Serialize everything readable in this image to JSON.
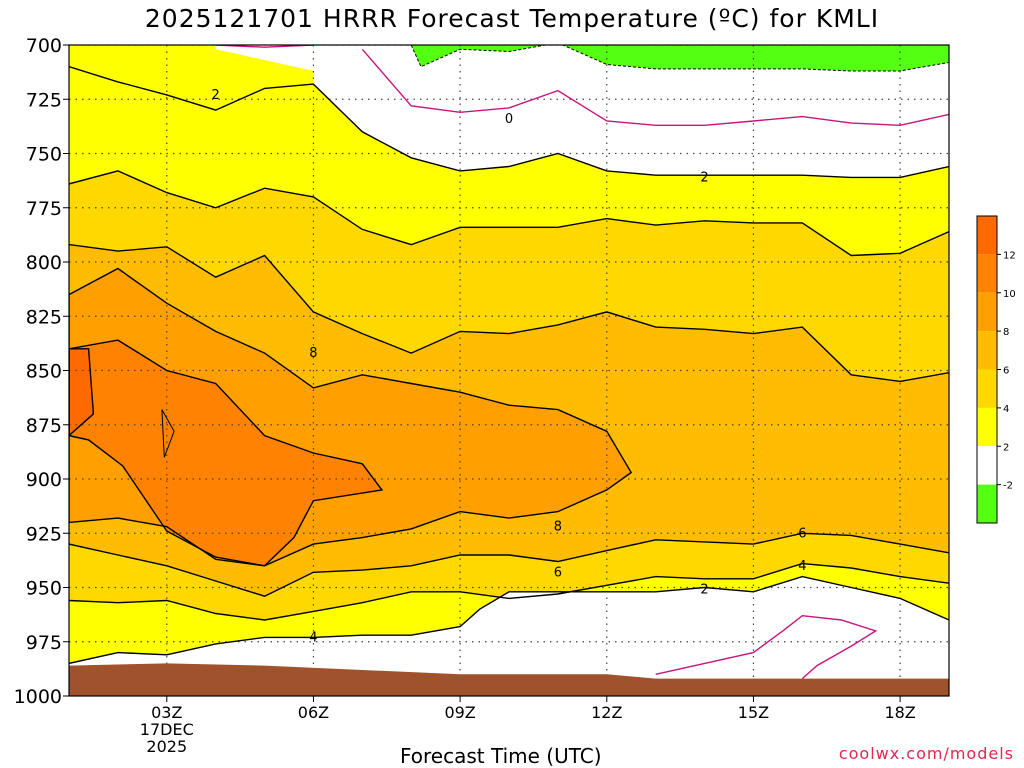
{
  "title": "2025121701 HRRR Forecast Temperature (ºC) for KMLI",
  "credit": "coolwx.com/models",
  "chart_data": {
    "type": "heatmap",
    "title": "2025121701 HRRR Forecast Temperature (ºC) for KMLI",
    "xlabel": "Forecast Time (UTC)",
    "ylabel": "",
    "x_unit": "forecast hour",
    "xlim": [
      1,
      19
    ],
    "ylim": [
      1000,
      700
    ],
    "y_ticks": [
      700,
      725,
      750,
      775,
      800,
      825,
      850,
      875,
      900,
      925,
      950,
      975,
      1000
    ],
    "x_ticks": [
      {
        "hour": 3,
        "label": "03Z",
        "sub": [
          "17DEC",
          "2025"
        ]
      },
      {
        "hour": 6,
        "label": "06Z"
      },
      {
        "hour": 9,
        "label": "09Z"
      },
      {
        "hour": 12,
        "label": "12Z"
      },
      {
        "hour": 15,
        "label": "15Z"
      },
      {
        "hour": 18,
        "label": "18Z"
      }
    ],
    "grid": true,
    "colorbar": {
      "levels": [
        {
          "min": -4,
          "max": -2,
          "color": "#55ff11"
        },
        {
          "min": -2,
          "max": 2,
          "color": "#ffffff"
        },
        {
          "min": 2,
          "max": 4,
          "color": "#ffff00"
        },
        {
          "min": 4,
          "max": 6,
          "color": "#ffd800"
        },
        {
          "min": 6,
          "max": 8,
          "color": "#ffbc00"
        },
        {
          "min": 8,
          "max": 10,
          "color": "#ff9f00"
        },
        {
          "min": 10,
          "max": 12,
          "color": "#ff8200"
        },
        {
          "min": 12,
          "max": 14,
          "color": "#ff6a00"
        }
      ],
      "tick_labels": [
        "-2",
        "2",
        "4",
        "6",
        "8",
        "10",
        "12"
      ]
    },
    "hours": [
      1,
      2,
      3,
      4,
      5,
      6,
      7,
      8,
      9,
      10,
      11,
      12,
      13,
      14,
      15,
      16,
      17,
      18,
      19
    ],
    "isotherms": [
      {
        "temp": 2,
        "points": [
          [
            1,
            710
          ],
          [
            2,
            717
          ],
          [
            3,
            723
          ],
          [
            4,
            730
          ],
          [
            5,
            720
          ],
          [
            6,
            718
          ],
          [
            7,
            740
          ],
          [
            8,
            752
          ],
          [
            9,
            758
          ],
          [
            10,
            756
          ],
          [
            11,
            750
          ],
          [
            12,
            758
          ],
          [
            13,
            760
          ],
          [
            14,
            760
          ],
          [
            15,
            760
          ],
          [
            16,
            760
          ],
          [
            17,
            761
          ],
          [
            18,
            761
          ],
          [
            19,
            756
          ]
        ]
      },
      {
        "temp": 4,
        "points": [
          [
            1,
            764
          ],
          [
            2,
            758
          ],
          [
            3,
            768
          ],
          [
            4,
            775
          ],
          [
            5,
            766
          ],
          [
            6,
            770
          ],
          [
            7,
            785
          ],
          [
            8,
            792
          ],
          [
            9,
            784
          ],
          [
            10,
            784
          ],
          [
            11,
            784
          ],
          [
            12,
            780
          ],
          [
            13,
            783
          ],
          [
            14,
            781
          ],
          [
            15,
            782
          ],
          [
            16,
            782
          ],
          [
            17,
            797
          ],
          [
            18,
            796
          ],
          [
            19,
            786
          ]
        ]
      },
      {
        "temp": 6,
        "points": [
          [
            1,
            792
          ],
          [
            2,
            795
          ],
          [
            3,
            793
          ],
          [
            4,
            807
          ],
          [
            5,
            797
          ],
          [
            6,
            823
          ],
          [
            7,
            833
          ],
          [
            8,
            842
          ],
          [
            9,
            832
          ],
          [
            10,
            833
          ],
          [
            11,
            829
          ],
          [
            12,
            823
          ],
          [
            13,
            830
          ],
          [
            14,
            831
          ],
          [
            15,
            833
          ],
          [
            16,
            830
          ],
          [
            17,
            852
          ],
          [
            18,
            855
          ],
          [
            19,
            851
          ]
        ]
      },
      {
        "temp": 8,
        "points": [
          [
            1,
            815
          ],
          [
            2,
            803
          ],
          [
            3,
            819
          ],
          [
            4,
            832
          ],
          [
            5,
            842
          ],
          [
            6,
            858
          ],
          [
            7,
            852
          ],
          [
            8,
            856
          ],
          [
            9,
            860
          ],
          [
            10,
            866
          ],
          [
            11,
            868
          ],
          [
            12,
            878
          ],
          [
            12.5,
            897
          ],
          [
            12,
            905
          ],
          [
            11,
            915
          ],
          [
            10,
            918
          ],
          [
            9,
            915
          ],
          [
            8,
            923
          ],
          [
            7,
            927
          ],
          [
            6,
            930
          ],
          [
            5,
            940
          ],
          [
            4,
            937
          ],
          [
            3,
            922
          ],
          [
            2,
            918
          ],
          [
            1,
            920
          ]
        ]
      },
      {
        "temp": 10,
        "points": [
          [
            1,
            840
          ],
          [
            2,
            836
          ],
          [
            3,
            850
          ],
          [
            4,
            856
          ],
          [
            5,
            880
          ],
          [
            6,
            888
          ],
          [
            7,
            893
          ],
          [
            7.4,
            905
          ],
          [
            6,
            910
          ],
          [
            5.6,
            927
          ],
          [
            5,
            940
          ],
          [
            4,
            936
          ],
          [
            3,
            924
          ],
          [
            2.1,
            894
          ],
          [
            1.4,
            882
          ],
          [
            1,
            880
          ]
        ]
      },
      {
        "temp": 12,
        "points": [
          [
            1,
            840
          ],
          [
            1.4,
            840
          ],
          [
            1.5,
            870
          ],
          [
            1,
            880
          ]
        ]
      },
      {
        "temp": 6,
        "points": [
          [
            1,
            930
          ],
          [
            2,
            935
          ],
          [
            3,
            940
          ],
          [
            4,
            947
          ],
          [
            5,
            954
          ],
          [
            6,
            943
          ],
          [
            7,
            942
          ],
          [
            8,
            940
          ],
          [
            9,
            935
          ],
          [
            10,
            935
          ],
          [
            11,
            938
          ],
          [
            12,
            933
          ],
          [
            13,
            928
          ],
          [
            14,
            929
          ],
          [
            15,
            930
          ],
          [
            16,
            925
          ],
          [
            17,
            926
          ],
          [
            18,
            930
          ],
          [
            19,
            934
          ]
        ]
      },
      {
        "temp": 4,
        "points": [
          [
            1,
            956
          ],
          [
            2,
            957
          ],
          [
            3,
            956
          ],
          [
            4,
            962
          ],
          [
            5,
            965
          ],
          [
            6,
            961
          ],
          [
            7,
            957
          ],
          [
            8,
            952
          ],
          [
            9,
            952
          ],
          [
            10,
            955
          ],
          [
            11,
            953
          ],
          [
            12,
            949
          ],
          [
            13,
            945
          ],
          [
            14,
            946
          ],
          [
            15,
            946
          ],
          [
            16,
            939
          ],
          [
            17,
            941
          ],
          [
            18,
            945
          ],
          [
            19,
            948
          ]
        ]
      },
      {
        "temp": 2,
        "points": [
          [
            1,
            985
          ],
          [
            2,
            980
          ],
          [
            3,
            981
          ],
          [
            4,
            976
          ],
          [
            5,
            973
          ],
          [
            6,
            973
          ],
          [
            7,
            972
          ],
          [
            8,
            972
          ],
          [
            9,
            968
          ],
          [
            9.4,
            960
          ],
          [
            10,
            952
          ],
          [
            11,
            952
          ],
          [
            12,
            952
          ],
          [
            13,
            952
          ],
          [
            14,
            950
          ],
          [
            15,
            952
          ],
          [
            16,
            945
          ],
          [
            17,
            950
          ],
          [
            18,
            955
          ],
          [
            19,
            965
          ]
        ]
      },
      {
        "temp": 0,
        "points": [
          [
            7,
            702
          ],
          [
            8,
            728
          ],
          [
            9,
            731
          ],
          [
            10,
            729
          ],
          [
            11,
            721
          ],
          [
            12,
            735
          ],
          [
            13,
            737
          ],
          [
            14,
            737
          ],
          [
            15,
            735
          ],
          [
            16,
            733
          ],
          [
            17,
            736
          ],
          [
            18,
            737
          ],
          [
            19,
            732
          ]
        ]
      },
      {
        "temp": 0,
        "points": [
          [
            4,
            700
          ],
          [
            5,
            701
          ],
          [
            6,
            700
          ]
        ]
      },
      {
        "temp": 0,
        "points": [
          [
            13,
            990
          ],
          [
            14,
            985
          ],
          [
            15,
            980
          ],
          [
            15.6,
            970
          ],
          [
            16,
            963
          ],
          [
            16.8,
            965
          ],
          [
            17.5,
            970
          ],
          [
            17,
            977
          ],
          [
            16.3,
            986
          ],
          [
            16,
            992
          ]
        ]
      }
    ],
    "cold_region": [
      [
        8,
        700
      ],
      [
        8.2,
        710
      ],
      [
        9,
        702
      ],
      [
        10,
        703
      ],
      [
        11,
        699
      ],
      [
        12,
        709
      ],
      [
        13,
        711
      ],
      [
        14,
        711
      ],
      [
        15,
        711
      ],
      [
        16,
        711
      ],
      [
        17,
        712
      ],
      [
        18,
        712
      ],
      [
        19,
        708
      ],
      [
        19,
        700
      ]
    ],
    "contour_labels": [
      {
        "text": "2",
        "x": 4,
        "y": 723
      },
      {
        "text": "0",
        "x": 10,
        "y": 734
      },
      {
        "text": "2",
        "x": 14,
        "y": 761
      },
      {
        "text": "8",
        "x": 6,
        "y": 842
      },
      {
        "text": "8",
        "x": 11,
        "y": 922
      },
      {
        "text": "6",
        "x": 11,
        "y": 943
      },
      {
        "text": "6",
        "x": 16,
        "y": 925
      },
      {
        "text": "4",
        "x": 16,
        "y": 940
      },
      {
        "text": "2",
        "x": 14,
        "y": 951
      },
      {
        "text": "4",
        "x": 6,
        "y": 973
      }
    ],
    "ground": [
      [
        1,
        986
      ],
      [
        3,
        985
      ],
      [
        5,
        986
      ],
      [
        9,
        990
      ],
      [
        12,
        990
      ],
      [
        13,
        992
      ],
      [
        19,
        992
      ]
    ]
  }
}
